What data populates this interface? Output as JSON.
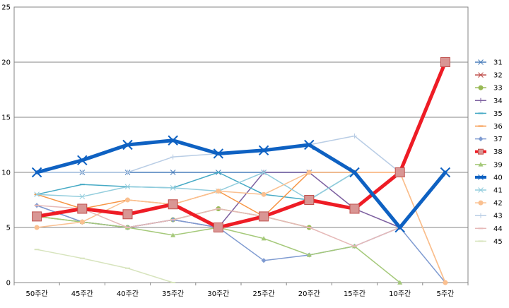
{
  "chart_data": {
    "type": "line",
    "title": "",
    "xlabel": "",
    "ylabel": "",
    "ylim": [
      0,
      25
    ],
    "yticks": [
      0,
      5,
      10,
      15,
      20,
      25
    ],
    "grid": true,
    "legend_position": "right",
    "categories": [
      "50주간",
      "45주간",
      "40주간",
      "35주간",
      "30주간",
      "25주간",
      "20주간",
      "15주간",
      "10주간",
      "5주간"
    ],
    "series": [
      {
        "name": "31",
        "color": "#4a7ebb",
        "marker": "x",
        "width": 1.5,
        "values": [
          10,
          10,
          10,
          10,
          10,
          10,
          10,
          10,
          5,
          10
        ]
      },
      {
        "name": "32",
        "color": "#be4b48",
        "marker": "x",
        "width": 1.5,
        "values": [
          6,
          6.7,
          6.2,
          7.1,
          5,
          6,
          7.5,
          6.7,
          10,
          20
        ]
      },
      {
        "name": "33",
        "color": "#98b954",
        "marker": "circle",
        "width": 1.5,
        "values": [
          6,
          5.5,
          5,
          5.7,
          6.7,
          6,
          5,
          null,
          null,
          null
        ]
      },
      {
        "name": "34",
        "color": "#7d60a0",
        "marker": "plus",
        "width": 1.5,
        "values": [
          7,
          5.5,
          5,
          5.7,
          5,
          10,
          10,
          6.7,
          5,
          null
        ]
      },
      {
        "name": "35",
        "color": "#46aac5",
        "marker": "dash",
        "width": 1.5,
        "values": [
          8,
          8.9,
          8.7,
          8.6,
          10,
          8,
          7.5,
          10,
          null,
          null
        ]
      },
      {
        "name": "36",
        "color": "#f79646",
        "marker": "dash",
        "width": 1.5,
        "values": [
          8,
          6.7,
          7.5,
          7.1,
          8.3,
          6,
          10,
          10,
          10,
          0
        ]
      },
      {
        "name": "37",
        "color": "#7f9bd1",
        "marker": "diamond",
        "width": 1.5,
        "values": [
          7,
          5.5,
          5,
          5.7,
          5,
          2,
          2.5,
          3.3,
          5,
          0
        ]
      },
      {
        "name": "38",
        "color": "#ee1c25",
        "marker": "square",
        "width": 5,
        "values": [
          6,
          6.7,
          6.2,
          7.1,
          5,
          6,
          7.5,
          6.7,
          10,
          20
        ]
      },
      {
        "name": "39",
        "color": "#a5c97a",
        "marker": "triangle",
        "width": 1.5,
        "values": [
          6,
          5.5,
          5,
          4.3,
          5,
          4,
          2.5,
          3.3,
          0,
          null
        ]
      },
      {
        "name": "40",
        "color": "#0e61c2",
        "marker": "x",
        "width": 5,
        "values": [
          10,
          11.1,
          12.5,
          12.9,
          11.7,
          12,
          12.5,
          10,
          5,
          10
        ]
      },
      {
        "name": "41",
        "color": "#93cddd",
        "marker": "x",
        "width": 1.5,
        "values": [
          8,
          7.8,
          8.7,
          8.6,
          8.3,
          10,
          7.5,
          10,
          null,
          null
        ]
      },
      {
        "name": "42",
        "color": "#fac090",
        "marker": "circle",
        "width": 1.5,
        "values": [
          5,
          5.5,
          7.5,
          7.1,
          8.3,
          8,
          10,
          10,
          10,
          0
        ]
      },
      {
        "name": "43",
        "color": "#b9cde5",
        "marker": "plus",
        "width": 1.5,
        "values": [
          10,
          10,
          10,
          11.4,
          11.7,
          12,
          12.5,
          13.3,
          10,
          null
        ]
      },
      {
        "name": "44",
        "color": "#e6b9b8",
        "marker": "dash",
        "width": 1.5,
        "values": [
          7,
          6.7,
          5,
          5.7,
          6.7,
          6,
          5,
          3.3,
          5,
          null
        ]
      },
      {
        "name": "45",
        "color": "#d7e4bd",
        "marker": "dash",
        "width": 1.5,
        "values": [
          3,
          2.2,
          1.3,
          0,
          null,
          null,
          null,
          null,
          null,
          null
        ]
      }
    ]
  }
}
